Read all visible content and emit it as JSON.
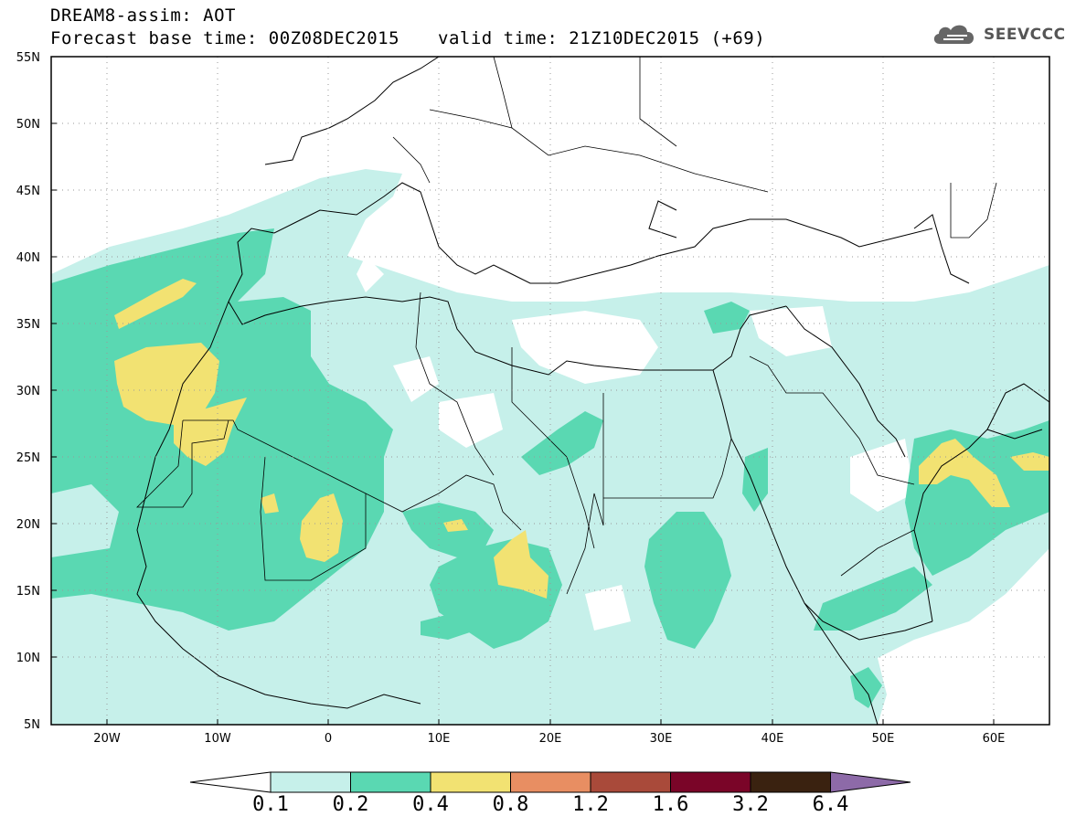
{
  "title": {
    "line1": "DREAM8-assim: AOT",
    "line2": "Forecast base time: 00Z08DEC2015",
    "valid_time": "valid time: 21Z10DEC2015 (+69)"
  },
  "logo": {
    "text": "SEEVCCC",
    "icon": "cloud-icon"
  },
  "map": {
    "lat_labels": [
      "55N",
      "50N",
      "45N",
      "40N",
      "35N",
      "30N",
      "25N",
      "20N",
      "15N",
      "10N",
      "5N"
    ],
    "lon_labels": [
      "20W",
      "10W",
      "0",
      "10E",
      "20E",
      "30E",
      "40E",
      "50E",
      "60E"
    ],
    "lat_range": [
      5,
      55
    ],
    "lon_range": [
      -25,
      65
    ],
    "grid": "dotted"
  },
  "colorbar": {
    "labels": [
      "0.1",
      "0.2",
      "0.4",
      "0.8",
      "1.2",
      "1.6",
      "3.2",
      "6.4"
    ],
    "colors": [
      "#c6f0ea",
      "#5ad8b2",
      "#f2e272",
      "#e88e62",
      "#a94a3a",
      "#7a0528",
      "#3a2210",
      "#8d6aa8"
    ],
    "under_color": "#ffffff",
    "over_color": "#8d6aa8"
  }
}
